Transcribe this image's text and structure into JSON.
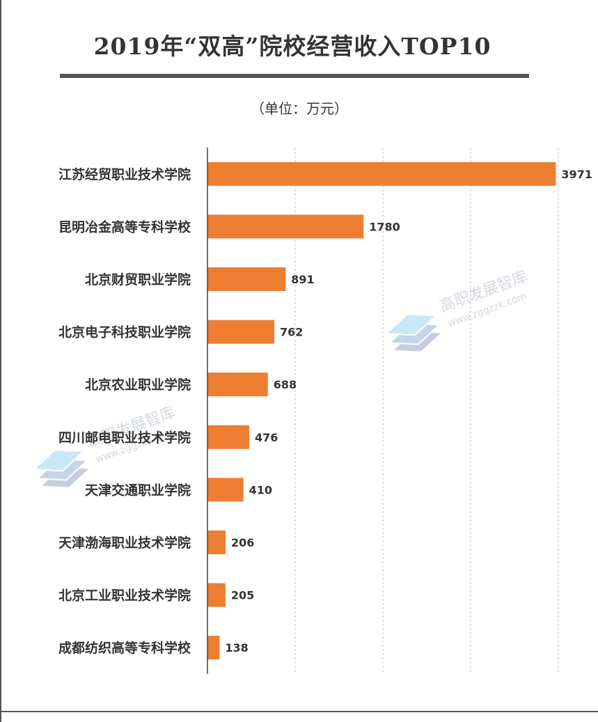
{
  "title": "2019年“双高”院校经营收入TOP10",
  "unit_label": "（单位：万元）",
  "watermark": {
    "name": "高职发展智库",
    "url": "www.zggzzk.com"
  },
  "colors": {
    "bar": "#ED7D31",
    "text": "#333333",
    "axis": "#404040",
    "grid": "#BFBFBF"
  },
  "chart_data": {
    "type": "bar",
    "orientation": "horizontal",
    "title": "2019年“双高”院校经营收入TOP10",
    "xlabel": "",
    "ylabel": "",
    "xlim": [
      0,
      4000
    ],
    "grid": true,
    "categories": [
      "江苏经贸职业技术学院",
      "昆明冶金高等专科学校",
      "北京财贸职业学院",
      "北京电子科技职业学院",
      "北京农业职业学院",
      "四川邮电职业技术学院",
      "天津交通职业学院",
      "天津渤海职业技术学院",
      "北京工业职业技术学院",
      "成都纺织高等专科学校"
    ],
    "values": [
      3971,
      1780,
      891,
      762,
      688,
      476,
      410,
      206,
      205,
      138
    ]
  }
}
